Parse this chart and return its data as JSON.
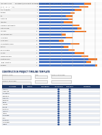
{
  "title_top": "Bar Report/Holding at Lonavala/Col. Merzi Site - From (Including Electrical Works)",
  "pdf_label": "PDF",
  "gantt_rows": [
    {
      "label": "Application 2002",
      "num": "1",
      "blue": 20,
      "orange": 3
    },
    {
      "label": "Glazing 2 (electrical)",
      "num": "2",
      "blue": 18,
      "orange": 4
    },
    {
      "label": "G.G. 2 RETTED",
      "num": "3",
      "blue": 16,
      "orange": 3
    },
    {
      "label": "Gypsum",
      "num": "4",
      "blue": 14,
      "orange": 2
    },
    {
      "label": "AFT",
      "num": "5",
      "blue": 12,
      "orange": 3
    },
    {
      "label": "Floor 508",
      "num": "6",
      "blue": 13,
      "orange": 2
    },
    {
      "label": "Amenities",
      "num": "7",
      "blue": 11,
      "orange": 4
    },
    {
      "label": "Glazing 3 Contingent2",
      "num": "8",
      "blue": 15,
      "orange": 3
    },
    {
      "label": "Data Glazing",
      "num": "9",
      "blue": 17,
      "orange": 2
    },
    {
      "label": "Car park",
      "num": "10",
      "blue": 16,
      "orange": 5
    },
    {
      "label": "Fencing plan rein",
      "num": "11",
      "blue": 10,
      "orange": 2
    },
    {
      "label": "Hang work",
      "num": "12",
      "blue": 12,
      "orange": 3
    },
    {
      "label": "Hang 2002",
      "num": "13",
      "blue": 9,
      "orange": 2
    },
    {
      "label": "Fire protection work",
      "num": "14",
      "blue": 14,
      "orange": 4
    },
    {
      "label": "Pantries",
      "num": "15",
      "blue": 11,
      "orange": 2
    },
    {
      "label": "Building work",
      "num": "16",
      "blue": 13,
      "orange": 3
    },
    {
      "label": "Fencing",
      "num": "17",
      "blue": 16,
      "orange": 4
    },
    {
      "label": "Mechanical work",
      "num": "18",
      "blue": 19,
      "orange": 3
    },
    {
      "label": "Electrical work",
      "num": "19",
      "blue": 22,
      "orange": 4
    },
    {
      "label": "Tiling - Painting",
      "num": "20",
      "blue": 21,
      "orange": 2
    },
    {
      "label": "Handover",
      "num": "21",
      "blue": 25,
      "orange": 1
    }
  ],
  "table_title": "CONSTRUCTION PROJECT TIMELINE TEMPLATE",
  "table_cols": [
    "TASK NAME",
    "PERSON",
    "COMPLETION",
    "START DATE",
    "END DATE",
    "COMMENTS"
  ],
  "table_rows": [
    "Category",
    "Clear Site",
    "Foundation",
    "Framework",
    "Carpentry",
    "Plumbing",
    "Wiring",
    "Insulate",
    "Roofing",
    "Sheetrock",
    "Tile & C.",
    "Interior",
    "Landscape",
    "Add'l",
    "Sprinklers",
    "Landscaper",
    "Inspect"
  ],
  "blue_color": "#4472C4",
  "orange_color": "#ED7D31",
  "bg_color": "#FFFFFF",
  "chart_bg": "#F8F8F8",
  "table_header_bg": "#1F3864",
  "table_header_fg": "#FFFFFF",
  "table_row_alt": "#E8EDF5",
  "table_row_normal": "#FFFFFF",
  "grid_color": "#CCCCCC",
  "pdf_bg": "#1A1A1A",
  "pdf_fg": "#FFFFFF",
  "bar_chart_left_col_bg": "#E8E8E8",
  "separator_color": "#BBBBBB"
}
